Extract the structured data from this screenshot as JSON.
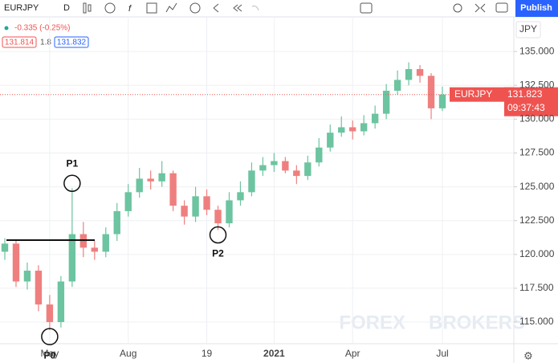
{
  "toolbar": {
    "symbol": "EURJPY",
    "interval": "D",
    "publish": "Publish"
  },
  "legend": {
    "change": "-0.335 (-0.25%)",
    "bid": "131.814",
    "spread": "1.8",
    "ask": "131.832"
  },
  "price_scale": {
    "currency": "JPY"
  },
  "last_price": {
    "symbol": "EURJPY",
    "price": "131.823",
    "countdown": "09:37:43"
  },
  "annotations": {
    "p0": "P0",
    "p1": "P1",
    "p2": "P2"
  },
  "watermark": {
    "left": "FOREX",
    "right": "BROKERS"
  },
  "chart_data": {
    "type": "candlestick",
    "categories": [
      null,
      null,
      null,
      null,
      "May",
      null,
      null,
      null,
      null,
      null,
      null,
      "Aug",
      null,
      null,
      null,
      null,
      null,
      null,
      "19",
      null,
      null,
      null,
      null,
      null,
      "2021",
      null,
      null,
      null,
      null,
      null,
      null,
      "Apr",
      null,
      null,
      null,
      null,
      null,
      null,
      null,
      "Jul"
    ],
    "open": [
      120.2,
      120.8,
      118.0,
      118.8,
      116.3,
      115.0,
      118.0,
      121.5,
      120.5,
      120.2,
      121.5,
      123.2,
      124.6,
      125.6,
      125.4,
      126.0,
      123.6,
      122.8,
      124.3,
      123.3,
      122.3,
      124.0,
      124.6,
      126.2,
      126.6,
      126.9,
      126.2,
      125.8,
      126.8,
      127.9,
      129.0,
      129.4,
      129.1,
      129.7,
      130.4,
      132.1,
      132.9,
      133.7,
      133.2,
      130.8
    ],
    "high": [
      121.2,
      121.0,
      119.4,
      119.2,
      117.0,
      118.4,
      124.9,
      122.4,
      121.0,
      122.0,
      123.8,
      125.2,
      126.4,
      126.2,
      126.9,
      126.2,
      124.0,
      125.0,
      124.8,
      123.6,
      124.6,
      125.4,
      126.8,
      127.2,
      127.5,
      127.2,
      126.6,
      127.3,
      128.6,
      129.6,
      130.2,
      129.9,
      130.3,
      131.0,
      132.6,
      133.6,
      134.2,
      134.0,
      133.4,
      132.4
    ],
    "low": [
      119.6,
      117.6,
      117.4,
      115.8,
      114.4,
      114.6,
      117.6,
      119.8,
      119.6,
      119.8,
      121.0,
      122.8,
      124.2,
      124.8,
      125.0,
      123.2,
      122.2,
      122.4,
      122.9,
      121.8,
      122.0,
      123.6,
      124.3,
      125.8,
      126.1,
      126.0,
      125.2,
      125.5,
      126.5,
      127.6,
      128.7,
      128.5,
      128.8,
      129.3,
      130.0,
      131.8,
      132.5,
      132.7,
      130.0,
      130.6
    ],
    "close": [
      120.8,
      118.0,
      118.8,
      116.3,
      115.0,
      118.0,
      121.5,
      120.5,
      120.2,
      121.5,
      123.2,
      124.6,
      125.6,
      125.4,
      126.0,
      123.6,
      122.8,
      124.3,
      123.3,
      122.3,
      124.0,
      124.6,
      126.2,
      126.6,
      126.9,
      126.2,
      125.8,
      126.8,
      127.9,
      129.0,
      129.4,
      129.1,
      129.7,
      130.4,
      132.1,
      132.9,
      133.7,
      133.2,
      130.8,
      131.82
    ],
    "up_color": "#6cc4a0",
    "down_color": "#ef7f7f",
    "ylim": [
      113.4,
      137.5
    ],
    "yticks": [
      {
        "value": 115,
        "label": "115.000"
      },
      {
        "value": 117.5,
        "label": "117.500"
      },
      {
        "value": 120,
        "label": "120.000"
      },
      {
        "value": 122.5,
        "label": "122.500"
      },
      {
        "value": 125,
        "label": "125.000"
      },
      {
        "value": 127.5,
        "label": "127.500"
      },
      {
        "value": 130,
        "label": "130.000"
      },
      {
        "value": 132.5,
        "label": "132.500"
      },
      {
        "value": 135,
        "label": "135.000"
      }
    ],
    "grid": true
  }
}
